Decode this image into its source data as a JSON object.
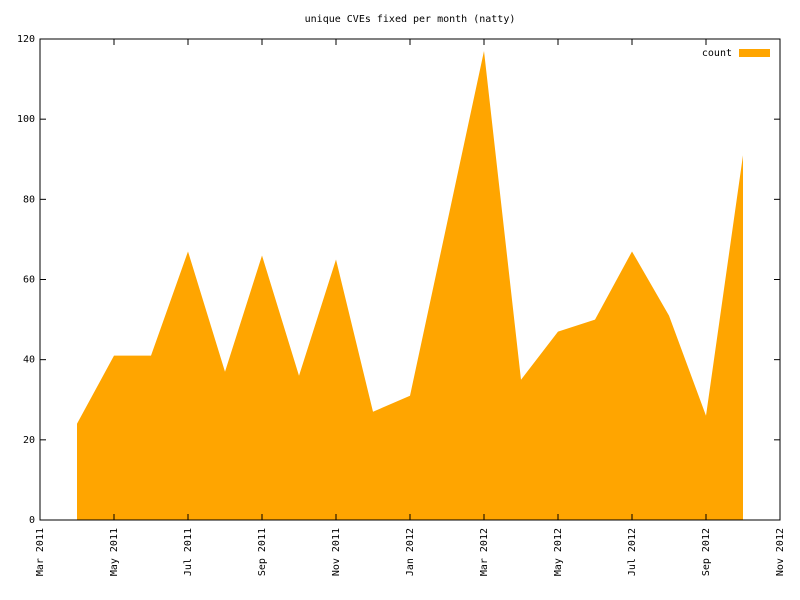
{
  "chart_data": {
    "type": "area",
    "title": "unique CVEs fixed per month (natty)",
    "x": [
      "2011-04",
      "2011-05",
      "2011-06",
      "2011-07",
      "2011-08",
      "2011-09",
      "2011-10",
      "2011-11",
      "2011-12",
      "2012-01",
      "2012-02",
      "2012-03",
      "2012-04",
      "2012-05",
      "2012-06",
      "2012-07",
      "2012-08",
      "2012-09",
      "2012-10"
    ],
    "series": [
      {
        "name": "count",
        "color": "#ffa500",
        "values": [
          24,
          41,
          41,
          67,
          37,
          66,
          36,
          65,
          27,
          31,
          74,
          117,
          35,
          47,
          50,
          67,
          51,
          26,
          91
        ]
      }
    ],
    "xlim": [
      "2011-03",
      "2012-11"
    ],
    "xticks": [
      {
        "value": "2011-03",
        "label": "Mar 2011"
      },
      {
        "value": "2011-05",
        "label": "May 2011"
      },
      {
        "value": "2011-07",
        "label": "Jul 2011"
      },
      {
        "value": "2011-09",
        "label": "Sep 2011"
      },
      {
        "value": "2011-11",
        "label": "Nov 2011"
      },
      {
        "value": "2012-01",
        "label": "Jan 2012"
      },
      {
        "value": "2012-03",
        "label": "Mar 2012"
      },
      {
        "value": "2012-05",
        "label": "May 2012"
      },
      {
        "value": "2012-07",
        "label": "Jul 2012"
      },
      {
        "value": "2012-09",
        "label": "Sep 2012"
      },
      {
        "value": "2012-11",
        "label": "Nov 2012"
      }
    ],
    "ylim": [
      0,
      120
    ],
    "yticks": [
      0,
      20,
      40,
      60,
      80,
      100,
      120
    ],
    "legend": "top-right"
  }
}
